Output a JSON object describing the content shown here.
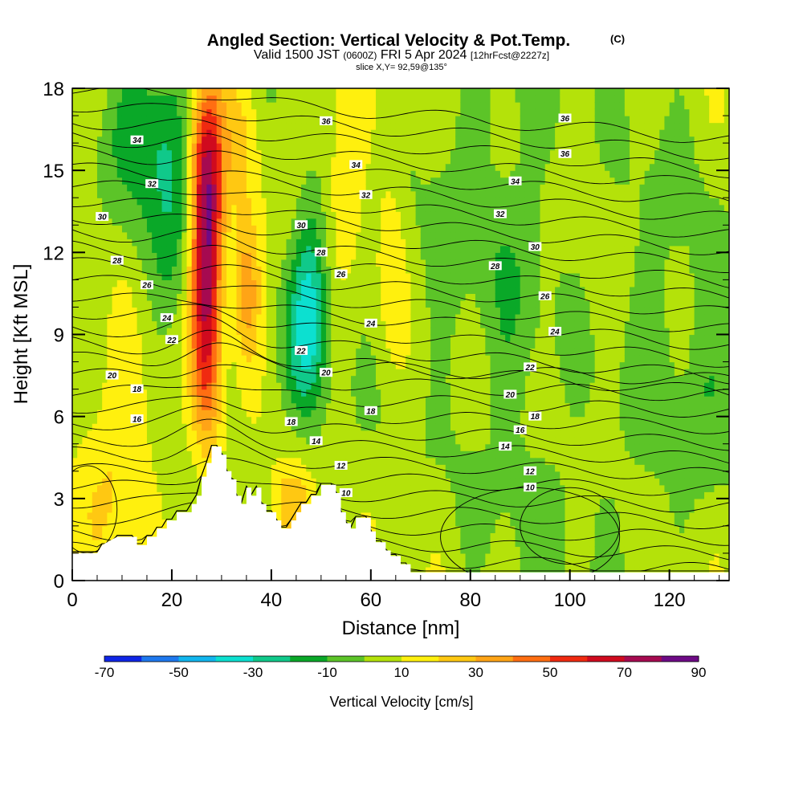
{
  "chart_data": {
    "type": "heatmap",
    "title": "Angled Section: Vertical Velocity & Pot.Temp.",
    "title_unit": "(C)",
    "subtitle": {
      "valid": "Valid 1500 JST",
      "utc": "(0600Z)",
      "date": "FRI 5 Apr 2024",
      "forecast": "[12hrFcst@2227z]"
    },
    "slice_label": "slice X,Y= 92,59@135°",
    "xlabel": "Distance [nm]",
    "ylabel": "Height [Kft MSL]",
    "xlim": [
      0,
      132
    ],
    "ylim": [
      0,
      18
    ],
    "x_ticks": [
      "0",
      "20",
      "40",
      "60",
      "80",
      "100",
      "120"
    ],
    "y_ticks": [
      "0",
      "3",
      "6",
      "9",
      "12",
      "15",
      "18"
    ],
    "colorbar": {
      "label": "Vertical Velocity [cm/s]",
      "tick_labels": [
        "-70",
        "-50",
        "-30",
        "-10",
        "10",
        "30",
        "50",
        "70",
        "90"
      ],
      "levels": [
        -70,
        -60,
        -50,
        -40,
        -30,
        -20,
        -10,
        0,
        10,
        20,
        30,
        40,
        50,
        60,
        70,
        80,
        90
      ],
      "colors": [
        "#0f25e6",
        "#1e78ee",
        "#12b6ee",
        "#0ce0d0",
        "#10c98a",
        "#0aa828",
        "#5cc428",
        "#b4e20a",
        "#fff00e",
        "#ffc812",
        "#ffa416",
        "#ff6e12",
        "#f02a10",
        "#d00a1e",
        "#a60a50",
        "#6e0a86"
      ]
    },
    "velocity_features": [
      {
        "x": 27,
        "z": 11.0,
        "sx": 2.2,
        "sz": 3.8,
        "value": 70
      },
      {
        "x": 27,
        "z": 15.5,
        "sx": 2.5,
        "sz": 2.5,
        "value": 35
      },
      {
        "x": 35,
        "z": 10.5,
        "sx": 2.0,
        "sz": 2.0,
        "value": 35
      },
      {
        "x": 34,
        "z": 16.5,
        "sx": 3.0,
        "sz": 2.0,
        "value": 15
      },
      {
        "x": 20,
        "z": 14.5,
        "sx": 3.5,
        "sz": 3.0,
        "value": -20
      },
      {
        "x": 14,
        "z": 16.5,
        "sx": 5.0,
        "sz": 2.0,
        "value": -20
      },
      {
        "x": 48,
        "z": 10.5,
        "sx": 2.5,
        "sz": 2.5,
        "value": -30
      },
      {
        "x": 46,
        "z": 8.5,
        "sx": 3.0,
        "sz": 2.0,
        "value": -15
      },
      {
        "x": 9,
        "z": 4.0,
        "sx": 6.0,
        "sz": 2.8,
        "value": 18
      },
      {
        "x": 44,
        "z": 2.8,
        "sx": 3.0,
        "sz": 1.0,
        "value": 22
      },
      {
        "x": 55,
        "z": 16.0,
        "sx": 3.0,
        "sz": 2.5,
        "value": 18
      },
      {
        "x": 64,
        "z": 12.5,
        "sx": 2.0,
        "sz": 2.5,
        "value": 12
      },
      {
        "x": 88,
        "z": 12.0,
        "sx": 6.0,
        "sz": 6.0,
        "value": -10
      },
      {
        "x": 118,
        "z": 9.0,
        "sx": 6.0,
        "sz": 5.0,
        "value": -8
      },
      {
        "x": 128,
        "z": 8.0,
        "sx": 3.0,
        "sz": 3.0,
        "value": -10
      },
      {
        "x": 76,
        "z": 13.0,
        "sx": 4.0,
        "sz": 5.0,
        "value": -6
      },
      {
        "x": 100,
        "z": 3.0,
        "sx": 8.0,
        "sz": 2.0,
        "value": -6
      }
    ],
    "terrain_profile_kft": [
      [
        0,
        1.0
      ],
      [
        5,
        1.0
      ],
      [
        6,
        1.3
      ],
      [
        9,
        1.6
      ],
      [
        13,
        1.6
      ],
      [
        13,
        1.3
      ],
      [
        15,
        1.3
      ],
      [
        15,
        1.6
      ],
      [
        17,
        1.6
      ],
      [
        17,
        1.9
      ],
      [
        19,
        1.9
      ],
      [
        19,
        2.2
      ],
      [
        21,
        2.2
      ],
      [
        21,
        2.5
      ],
      [
        24,
        2.5
      ],
      [
        24,
        2.8
      ],
      [
        25,
        2.8
      ],
      [
        25,
        3.1
      ],
      [
        26,
        3.1
      ],
      [
        26,
        3.8
      ],
      [
        27,
        3.8
      ],
      [
        27,
        4.3
      ],
      [
        28,
        4.3
      ],
      [
        28,
        4.9
      ],
      [
        29,
        4.9
      ],
      [
        29,
        4.9
      ],
      [
        30,
        4.9
      ],
      [
        30,
        4.6
      ],
      [
        31,
        4.6
      ],
      [
        31,
        4.0
      ],
      [
        32,
        4.0
      ],
      [
        32,
        3.7
      ],
      [
        33,
        3.7
      ],
      [
        33,
        3.1
      ],
      [
        34,
        3.1
      ],
      [
        34,
        2.8
      ],
      [
        35,
        2.8
      ],
      [
        35,
        3.4
      ],
      [
        36,
        3.4
      ],
      [
        36,
        3.1
      ],
      [
        37,
        3.1
      ],
      [
        37,
        3.4
      ],
      [
        38,
        3.4
      ],
      [
        38,
        2.8
      ],
      [
        39,
        2.8
      ],
      [
        39,
        2.5
      ],
      [
        41,
        2.5
      ],
      [
        41,
        2.2
      ],
      [
        42,
        2.2
      ],
      [
        42,
        1.9
      ],
      [
        44,
        1.9
      ],
      [
        44,
        2.2
      ],
      [
        45,
        2.2
      ],
      [
        45,
        2.5
      ],
      [
        46,
        2.5
      ],
      [
        46,
        2.8
      ],
      [
        48,
        2.8
      ],
      [
        48,
        3.1
      ],
      [
        50,
        3.1
      ],
      [
        50,
        3.5
      ],
      [
        53,
        3.5
      ],
      [
        53,
        3.2
      ],
      [
        54,
        3.2
      ],
      [
        54,
        2.5
      ],
      [
        55,
        2.5
      ],
      [
        55,
        2.1
      ],
      [
        56,
        2.1
      ],
      [
        56,
        1.9
      ],
      [
        57,
        1.9
      ],
      [
        57,
        2.3
      ],
      [
        60,
        2.3
      ],
      [
        60,
        1.8
      ],
      [
        61,
        1.8
      ],
      [
        61,
        1.4
      ],
      [
        63,
        1.4
      ],
      [
        63,
        1.1
      ],
      [
        64,
        1.1
      ],
      [
        64,
        0.9
      ],
      [
        66,
        0.9
      ],
      [
        66,
        0.6
      ],
      [
        68,
        0.6
      ],
      [
        68,
        0.3
      ],
      [
        132,
        0.3
      ]
    ],
    "isentropes": [
      {
        "theta": 10,
        "label_at": [
          [
            55,
            3.2
          ],
          [
            92,
            3.4
          ]
        ]
      },
      {
        "theta": 12,
        "label_at": [
          [
            54,
            4.2
          ],
          [
            92,
            4.0
          ]
        ]
      },
      {
        "theta": 14,
        "label_at": [
          [
            49,
            5.1
          ],
          [
            87,
            4.9
          ]
        ]
      },
      {
        "theta": 16,
        "label_at": [
          [
            13,
            5.9
          ],
          [
            90,
            5.5
          ]
        ]
      },
      {
        "theta": 18,
        "label_at": [
          [
            44,
            5.8
          ],
          [
            60,
            6.2
          ],
          [
            93,
            6.0
          ]
        ]
      },
      {
        "theta": 18,
        "label_at": [
          [
            13,
            7.0
          ]
        ]
      },
      {
        "theta": 20,
        "label_at": [
          [
            8,
            7.5
          ],
          [
            51,
            7.6
          ],
          [
            88,
            6.8
          ]
        ]
      },
      {
        "theta": 22,
        "label_at": [
          [
            20,
            8.8
          ],
          [
            46,
            8.4
          ],
          [
            92,
            7.8
          ]
        ]
      },
      {
        "theta": 24,
        "label_at": [
          [
            19,
            9.6
          ],
          [
            60,
            9.4
          ],
          [
            97,
            9.1
          ]
        ]
      },
      {
        "theta": 26,
        "label_at": [
          [
            15,
            10.8
          ],
          [
            54,
            11.2
          ],
          [
            95,
            10.4
          ]
        ]
      },
      {
        "theta": 28,
        "label_at": [
          [
            9,
            11.7
          ],
          [
            50,
            12.0
          ],
          [
            85,
            11.5
          ]
        ]
      },
      {
        "theta": 30,
        "label_at": [
          [
            6,
            13.3
          ],
          [
            46,
            13.0
          ],
          [
            93,
            12.2
          ]
        ]
      },
      {
        "theta": 32,
        "label_at": [
          [
            16,
            14.5
          ],
          [
            59,
            14.1
          ],
          [
            86,
            13.4
          ]
        ]
      },
      {
        "theta": 34,
        "label_at": [
          [
            13,
            16.1
          ],
          [
            57,
            15.2
          ],
          [
            89,
            14.6
          ]
        ]
      },
      {
        "theta": 36,
        "label_at": [
          [
            51,
            16.8
          ],
          [
            99,
            15.6
          ]
        ]
      },
      {
        "theta": 36,
        "label_at": [
          [
            99,
            16.9
          ]
        ]
      }
    ]
  }
}
